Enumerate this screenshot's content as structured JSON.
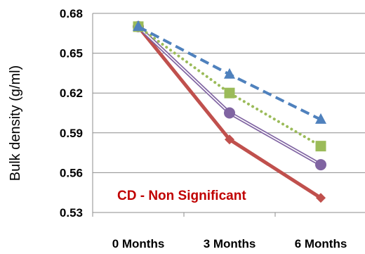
{
  "chart_data": {
    "type": "line",
    "categories": [
      "0 Months",
      "3 Months",
      "6 Months"
    ],
    "ylabel": "Bulk density (g/ml)",
    "ylim": [
      0.53,
      0.68
    ],
    "yticks": [
      "0.53",
      "0.56",
      "0.59",
      "0.62",
      "0.65",
      "0.68"
    ],
    "grid": true,
    "annotation": "CD - Non Significant",
    "annotation_color": "#c00000",
    "series": [
      {
        "values": [
          0.67,
          0.585,
          0.541
        ],
        "color": "#c0504d",
        "marker": "diamond",
        "line": "solid-thick"
      },
      {
        "values": [
          0.67,
          0.605,
          0.566
        ],
        "color": "#8064a2",
        "marker": "circle",
        "line": "double"
      },
      {
        "values": [
          0.67,
          0.62,
          0.58
        ],
        "color": "#9bbb59",
        "marker": "square",
        "line": "dotted"
      },
      {
        "values": [
          0.67,
          0.634,
          0.6
        ],
        "color": "#4f81bd",
        "marker": "triangle",
        "line": "dashed"
      }
    ]
  }
}
